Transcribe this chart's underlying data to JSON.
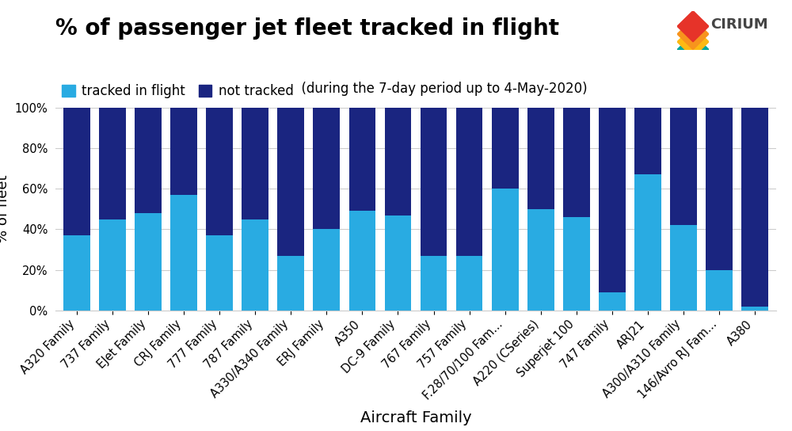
{
  "title": "% of passenger jet fleet tracked in flight",
  "subtitle": "  (during the 7-day period up to 4-May-2020)",
  "xlabel": "Aircraft Family",
  "ylabel": "% of fleet",
  "categories": [
    "A320 Family",
    "737 Family",
    "EJet Family",
    "CRJ Family",
    "777 Family",
    "787 Family",
    "A330/A340 Family",
    "ERJ Family",
    "A350",
    "DC-9 Family",
    "767 Family",
    "757 Family",
    "F.28/70/100 Fam...",
    "A220 (CSeries)",
    "Superjet 100",
    "747 Family",
    "ARJ21",
    "A300/A310 Family",
    "146/Avro RJ Fam...",
    "A380"
  ],
  "tracked": [
    37,
    45,
    48,
    57,
    37,
    45,
    27,
    40,
    49,
    47,
    27,
    27,
    60,
    50,
    46,
    9,
    67,
    42,
    20,
    2
  ],
  "color_tracked": "#29ABE2",
  "color_not_tracked": "#1A2580",
  "legend_tracked": "tracked in flight",
  "legend_not_tracked": "not tracked",
  "ylim": [
    0,
    100
  ],
  "yticks": [
    0,
    20,
    40,
    60,
    80,
    100
  ],
  "ytick_labels": [
    "0%",
    "20%",
    "40%",
    "60%",
    "80%",
    "100%"
  ],
  "background_color": "#ffffff",
  "grid_color": "#cccccc",
  "title_fontsize": 20,
  "label_fontsize": 13,
  "tick_fontsize": 10.5,
  "legend_fontsize": 12,
  "cirium_fontsize": 13
}
